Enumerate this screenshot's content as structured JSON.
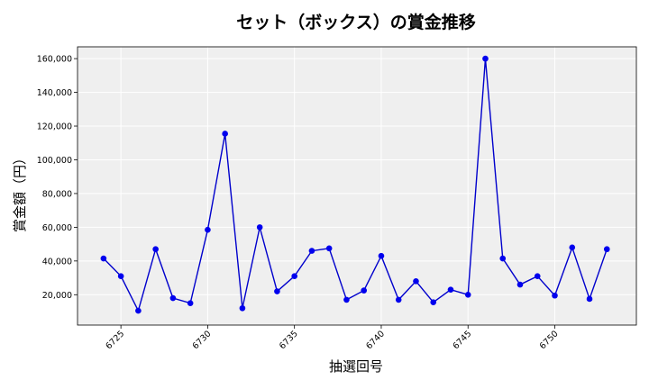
{
  "chart_data": {
    "type": "line",
    "title": "セット（ボックス）の賞金推移",
    "xlabel": "抽選回号",
    "ylabel": "賞金額（円）",
    "x": [
      6724,
      6725,
      6726,
      6727,
      6728,
      6729,
      6730,
      6731,
      6732,
      6733,
      6734,
      6735,
      6736,
      6737,
      6738,
      6739,
      6740,
      6741,
      6742,
      6743,
      6744,
      6745,
      6746,
      6747,
      6748,
      6749,
      6750,
      6751,
      6752,
      6753
    ],
    "series": [
      {
        "values": [
          41500,
          31000,
          10500,
          47000,
          18000,
          15000,
          58500,
          115500,
          12000,
          60000,
          22000,
          31000,
          46000,
          47500,
          17000,
          22500,
          43000,
          17000,
          28000,
          15500,
          23000,
          20000,
          160000,
          41500,
          26000,
          31000,
          19500,
          48000,
          17500,
          47000
        ]
      }
    ],
    "xlim": [
      6722.5,
      6754.7
    ],
    "ylim": [
      2000,
      167000
    ],
    "xticks": [
      6725,
      6730,
      6735,
      6740,
      6745,
      6750
    ],
    "xtick_labels": [
      "6725",
      "6730",
      "6735",
      "6740",
      "6745",
      "6750"
    ],
    "yticks": [
      20000,
      40000,
      60000,
      80000,
      100000,
      120000,
      140000,
      160000
    ],
    "ytick_labels": [
      "20,000",
      "40,000",
      "60,000",
      "80,000",
      "100,000",
      "120,000",
      "140,000",
      "160,000"
    ],
    "grid": true,
    "colors": {
      "line": "#0000cc",
      "marker": "#0000ee",
      "plot_bg": "#efefef",
      "grid": "#ffffff"
    }
  }
}
